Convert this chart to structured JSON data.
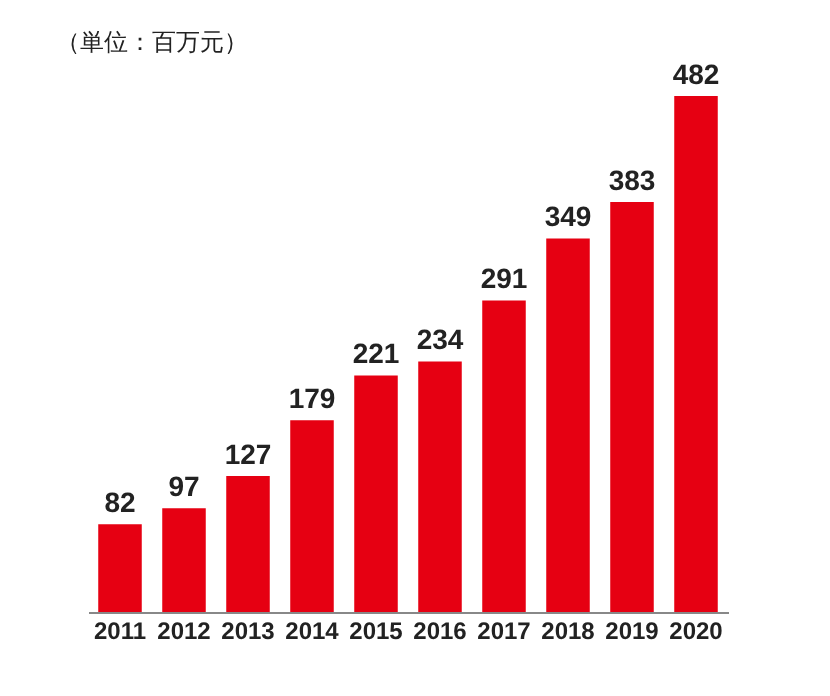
{
  "chart_data": {
    "type": "bar",
    "annotations": [
      "（単位：百万元）"
    ],
    "categories": [
      "2011",
      "2012",
      "2013",
      "2014",
      "2015",
      "2016",
      "2017",
      "2018",
      "2019",
      "2020"
    ],
    "values": [
      82,
      97,
      127,
      179,
      221,
      234,
      291,
      349,
      383,
      482
    ],
    "color": "#e60012",
    "data_labels": true
  }
}
